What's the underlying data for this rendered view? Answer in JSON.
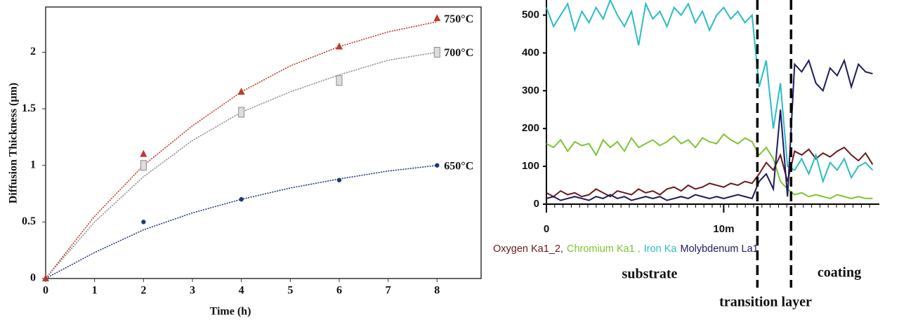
{
  "chart_data": [
    {
      "type": "scatter",
      "x_label": "Time (h)",
      "y_label": "Diffusion Thickness (µm)",
      "xlim": [
        0,
        8.9
      ],
      "ylim": [
        0,
        2.4
      ],
      "xticks": [
        0,
        1,
        2,
        3,
        4,
        5,
        6,
        7,
        8
      ],
      "yticks": [
        0,
        0.5,
        1,
        1.5,
        2
      ],
      "fit_x": [
        0,
        1,
        2,
        3,
        4,
        5,
        6,
        7,
        8
      ],
      "series": [
        {
          "name": "750°C",
          "color": "#c0392b",
          "marker": "triangle",
          "x": [
            0,
            2,
            4,
            6,
            8
          ],
          "values": [
            0,
            1.1,
            1.65,
            2.05,
            2.3
          ],
          "fit_values": [
            0,
            0.55,
            1.0,
            1.35,
            1.65,
            1.88,
            2.05,
            2.18,
            2.27
          ]
        },
        {
          "name": "700°C",
          "color": "#8c8c8c",
          "marker": "square",
          "x": [
            2,
            4,
            6,
            8
          ],
          "values": [
            1.0,
            1.47,
            1.75,
            2.0
          ],
          "fit_values": [
            0,
            0.5,
            0.9,
            1.22,
            1.47,
            1.65,
            1.8,
            1.93,
            2.0
          ]
        },
        {
          "name": "650°C",
          "color": "#1f3a7a",
          "marker": "circle",
          "x": [
            2,
            4,
            6,
            8
          ],
          "values": [
            0.5,
            0.7,
            0.87,
            1.0
          ],
          "fit_values": [
            0,
            0.23,
            0.43,
            0.58,
            0.7,
            0.8,
            0.88,
            0.95,
            1.0
          ]
        }
      ]
    },
    {
      "type": "line",
      "xlim": [
        0,
        18.7
      ],
      "ylim": [
        0,
        540
      ],
      "xticks": [
        0,
        {
          "value": 10,
          "label": "10m"
        }
      ],
      "yticks": [
        0,
        100,
        200,
        300,
        400,
        500
      ],
      "x": [
        0,
        0.4,
        0.8,
        1.2,
        1.6,
        2,
        2.4,
        2.8,
        3.2,
        3.6,
        4,
        4.4,
        4.8,
        5.2,
        5.6,
        6,
        6.4,
        6.8,
        7.2,
        7.6,
        8,
        8.4,
        8.8,
        9.2,
        9.6,
        10,
        10.4,
        10.8,
        11.2,
        11.6,
        12,
        12.4,
        12.8,
        13.2,
        13.6,
        14,
        14.4,
        14.8,
        15.2,
        15.6,
        16,
        16.4,
        16.8,
        17.2,
        17.6,
        18,
        18.4
      ],
      "boundaries": [
        11.9,
        13.8
      ],
      "annotations": [
        "substrate",
        "coating",
        "transition layer"
      ],
      "series": [
        {
          "name": "Oxygen Ka1_2,",
          "color": "#6b1a1a",
          "values": [
            30,
            20,
            35,
            25,
            30,
            20,
            25,
            40,
            30,
            20,
            35,
            30,
            25,
            40,
            30,
            35,
            25,
            40,
            45,
            35,
            50,
            40,
            45,
            55,
            50,
            45,
            55,
            50,
            60,
            55,
            80,
            110,
            90,
            130,
            60,
            140,
            130,
            145,
            120,
            135,
            125,
            140,
            150,
            130,
            115,
            135,
            105
          ]
        },
        {
          "name": "Chromium Ka1 ,",
          "color": "#7cc531",
          "values": [
            160,
            150,
            170,
            140,
            165,
            155,
            160,
            130,
            170,
            150,
            165,
            140,
            175,
            150,
            160,
            170,
            155,
            165,
            180,
            160,
            170,
            150,
            175,
            165,
            160,
            185,
            170,
            160,
            175,
            165,
            130,
            150,
            120,
            60,
            40,
            25,
            30,
            20,
            25,
            20,
            15,
            25,
            20,
            15,
            20,
            15,
            15
          ]
        },
        {
          "name": "Iron Ka",
          "color": "#2bbcc4",
          "values": [
            520,
            470,
            500,
            530,
            460,
            510,
            480,
            520,
            490,
            540,
            500,
            470,
            510,
            420,
            530,
            490,
            510,
            470,
            520,
            500,
            530,
            480,
            510,
            460,
            500,
            520,
            490,
            510,
            480,
            500,
            310,
            380,
            200,
            320,
            100,
            90,
            120,
            80,
            130,
            60,
            110,
            90,
            120,
            70,
            100,
            110,
            90
          ]
        },
        {
          "name": "Molybdenum La1",
          "color": "#1c1a5e",
          "values": [
            15,
            20,
            10,
            15,
            20,
            15,
            10,
            20,
            15,
            25,
            15,
            20,
            10,
            15,
            20,
            15,
            20,
            10,
            15,
            20,
            15,
            25,
            20,
            15,
            20,
            15,
            20,
            25,
            20,
            15,
            60,
            80,
            40,
            250,
            20,
            370,
            350,
            380,
            320,
            300,
            360,
            340,
            380,
            310,
            370,
            350,
            345
          ]
        }
      ]
    }
  ]
}
